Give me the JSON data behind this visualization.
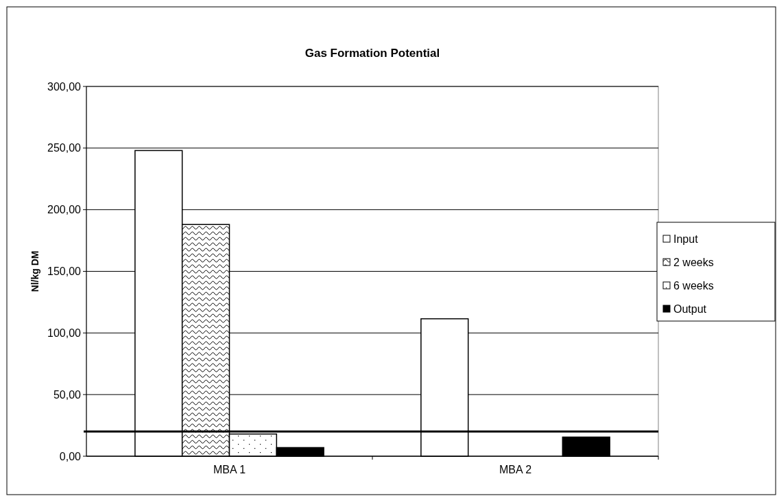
{
  "chart_data": {
    "type": "bar",
    "title": "Gas Formation Potential",
    "ylabel": "Nl/kg DM",
    "categories": [
      "MBA 1",
      "MBA 2"
    ],
    "series": [
      {
        "name": "Input",
        "color": "#ffffff",
        "values": [
          248,
          111.5
        ]
      },
      {
        "name": "2 weeks",
        "color": "#000000",
        "values": [
          188,
          null
        ]
      },
      {
        "name": "6 weeks",
        "color": "#000000",
        "values": [
          18,
          null
        ]
      },
      {
        "name": "Output",
        "color": "#000000",
        "values": [
          7,
          15.5
        ]
      }
    ],
    "ylim": [
      0,
      300
    ],
    "yticks": [
      {
        "value": 0,
        "label": "0,00"
      },
      {
        "value": 50,
        "label": "50,00"
      },
      {
        "value": 100,
        "label": "100,00"
      },
      {
        "value": 150,
        "label": "150,00"
      },
      {
        "value": 200,
        "label": "200,00"
      },
      {
        "value": 250,
        "label": "250,00"
      },
      {
        "value": 300,
        "label": "300,00"
      }
    ],
    "ref_lines": [
      {
        "axis": "y",
        "value": 20,
        "color": "#000000"
      }
    ],
    "grid": "y",
    "legend": "right"
  }
}
